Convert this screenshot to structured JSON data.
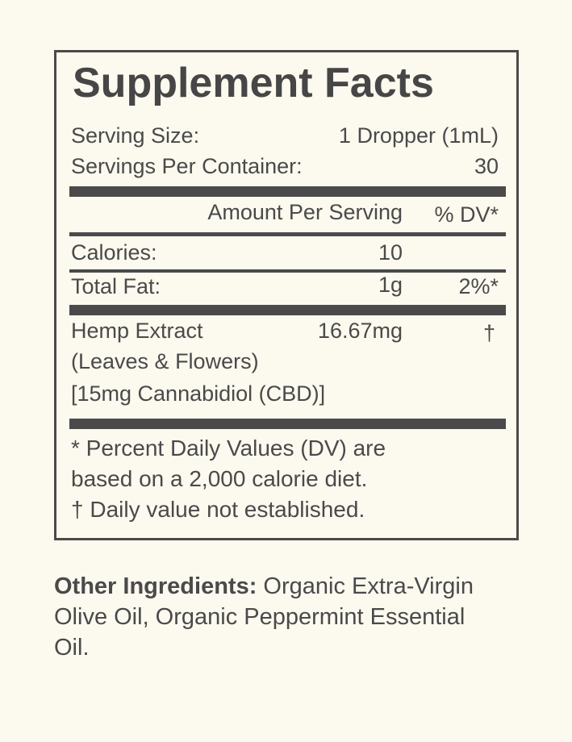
{
  "title": "Supplement Facts",
  "serving_size": {
    "label": "Serving Size:",
    "value": "1 Dropper (1mL)"
  },
  "servings_per_container": {
    "label": "Servings Per Container:",
    "value": "30"
  },
  "header": {
    "amount": "Amount Per Serving",
    "dv": "% DV*"
  },
  "calories": {
    "label": "Calories:",
    "amount": "10",
    "dv": ""
  },
  "total_fat": {
    "label": "Total Fat:",
    "amount": "1g",
    "dv": "2%*"
  },
  "hemp": {
    "line1": "Hemp Extract",
    "line2": "(Leaves & Flowers)",
    "line3": "[15mg Cannabidiol (CBD)]",
    "amount": "16.67mg",
    "dv": "†"
  },
  "footnotes": [
    "* Percent Daily Values (DV) are",
    "based on a 2,000 calorie diet.",
    "† Daily value not established."
  ],
  "other_ingredients": {
    "label": "Other Ingredients:",
    "text": " Organic Extra-Virgin Olive Oil, Organic Peppermint Essential Oil."
  }
}
